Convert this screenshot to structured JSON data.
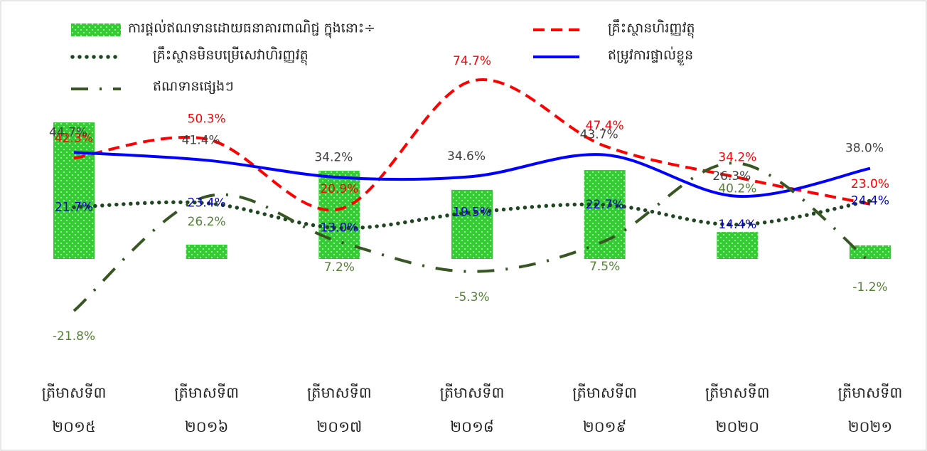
{
  "chart_data": {
    "type": "bar-line",
    "categories": [
      "ត្រីមាសទី៣\n២០១៥",
      "ត្រីមាសទី៣\n២០១៦",
      "ត្រីមាសទី៣\n២០១៧",
      "ត្រីមាសទី៣\n២០១៨",
      "ត្រីមាសទី៣\n២០១៩",
      "ត្រីមាសទី៣\n២០២០",
      "ត្រីមាសទី៣\n២០២១"
    ],
    "bars": {
      "name": "ការផ្ដល់ឥណទានដោយធនាគារពាណិជ្ជ  ក្នុងនោះ÷",
      "color": "#33cc33",
      "values": [
        57.3,
        6.0,
        37.0,
        29.0,
        37.3,
        11.3,
        5.7
      ]
    },
    "series": [
      {
        "name": "គ្រឹះស្ថានហិរញ្ញវត្ថុ",
        "color": "#ff0000",
        "label_color": "#ff0000",
        "style": "dashed",
        "values": [
          42.3,
          50.3,
          20.9,
          74.7,
          47.4,
          34.2,
          23.0
        ],
        "value_labels": [
          "42.3%",
          "50.3%",
          "20.9%",
          "74.7%",
          "47.4%",
          "34.2%",
          "23.0%"
        ]
      },
      {
        "name": "គ្រឹះស្ថានមិនបម្រើសេវាហិរញ្ញវត្ថុ",
        "color": "#1e4620",
        "label_color": "#0000cc",
        "style": "dotted",
        "values": [
          21.7,
          23.4,
          13.0,
          19.5,
          22.7,
          14.4,
          24.4
        ],
        "value_labels": [
          "21.7%",
          "23.4%",
          "13.0%",
          "19.5%",
          "22.7%",
          "14.4%",
          "24.4%"
        ]
      },
      {
        "name": "ឥម្រូវការផ្ទាល់ខ្លួន",
        "color": "#0000ff",
        "label_color": "#404040",
        "style": "solid",
        "values": [
          44.7,
          41.4,
          34.2,
          34.6,
          43.7,
          26.3,
          38.0
        ],
        "value_labels": [
          "44.7%",
          "41.4%",
          "34.2%",
          "34.6%",
          "43.7%",
          "26.3%",
          "38.0%"
        ]
      },
      {
        "name": "ឥណទានផ្សេងៗ",
        "color": "#375623",
        "label_color": "#548235",
        "style": "dashdot",
        "values": [
          -21.8,
          26.2,
          7.2,
          -5.3,
          7.5,
          40.2,
          -1.2
        ],
        "value_labels": [
          "-21.8%",
          "26.2%",
          "7.2%",
          "-5.3%",
          "7.5%",
          "40.2%",
          "-1.2%"
        ]
      }
    ],
    "ylim": [
      -40,
      100
    ],
    "yticks": [
      -40,
      -20,
      0,
      20,
      40,
      60,
      80
    ],
    "grid": true
  }
}
